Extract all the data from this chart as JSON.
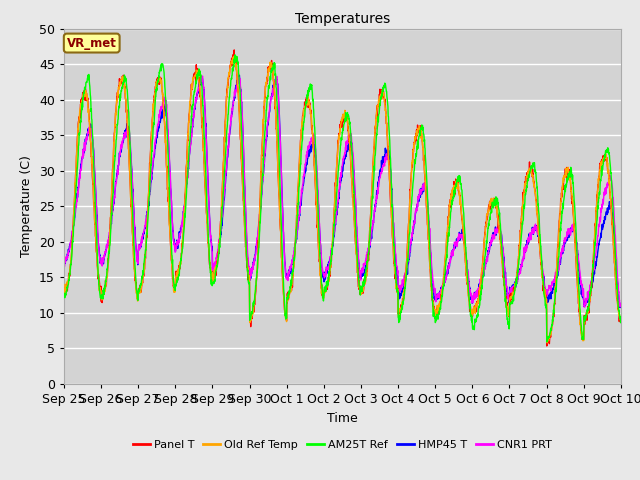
{
  "title": "Temperatures",
  "xlabel": "Time",
  "ylabel": "Temperature (C)",
  "ylim": [
    0,
    50
  ],
  "n_days": 15,
  "background_color": "#e8e8e8",
  "plot_bg_color": "#d3d3d3",
  "grid_color": "white",
  "series": [
    "Panel T",
    "Old Ref Temp",
    "AM25T Ref",
    "HMP45 T",
    "CNR1 PRT"
  ],
  "colors": [
    "red",
    "orange",
    "lime",
    "blue",
    "magenta"
  ],
  "legend_label": "VR_met",
  "x_tick_labels": [
    "Sep 25",
    "Sep 26",
    "Sep 27",
    "Sep 28",
    "Sep 29",
    "Sep 30",
    "Oct 1",
    "Oct 2",
    "Oct 3",
    "Oct 4",
    "Oct 5",
    "Oct 6",
    "Oct 7",
    "Oct 8",
    "Oct 9",
    "Oct 10"
  ],
  "yticks": [
    0,
    5,
    10,
    15,
    20,
    25,
    30,
    35,
    40,
    45,
    50
  ],
  "day_maxes_base": [
    41,
    43,
    43,
    44,
    46,
    45,
    40,
    38,
    41,
    36,
    28,
    26,
    30,
    30,
    32
  ],
  "day_mins_base": [
    13,
    12,
    13,
    15,
    15,
    9,
    12,
    13,
    13,
    10,
    10,
    10,
    12,
    6,
    9
  ],
  "day_maxes_am25": [
    43,
    43,
    45,
    44,
    46,
    45,
    42,
    38,
    42,
    36,
    29,
    26,
    31,
    30,
    33
  ],
  "day_mins_am25": [
    12,
    12,
    13,
    14,
    14,
    9,
    12,
    13,
    13,
    9,
    9,
    8,
    11,
    6,
    9
  ],
  "day_maxes_hmp": [
    36,
    36,
    39,
    43,
    43,
    43,
    34,
    34,
    33,
    28,
    21,
    22,
    22,
    22,
    25
  ],
  "day_mins_hmp": [
    17,
    17,
    19,
    19,
    15,
    15,
    15,
    15,
    15,
    12,
    12,
    12,
    13,
    12,
    11
  ],
  "day_maxes_cnr": [
    36,
    36,
    40,
    43,
    43,
    43,
    35,
    35,
    32,
    28,
    21,
    22,
    22,
    22,
    29
  ],
  "day_mins_cnr": [
    17,
    17,
    19,
    19,
    16,
    15,
    15,
    15,
    16,
    13,
    12,
    12,
    13,
    13,
    11
  ]
}
